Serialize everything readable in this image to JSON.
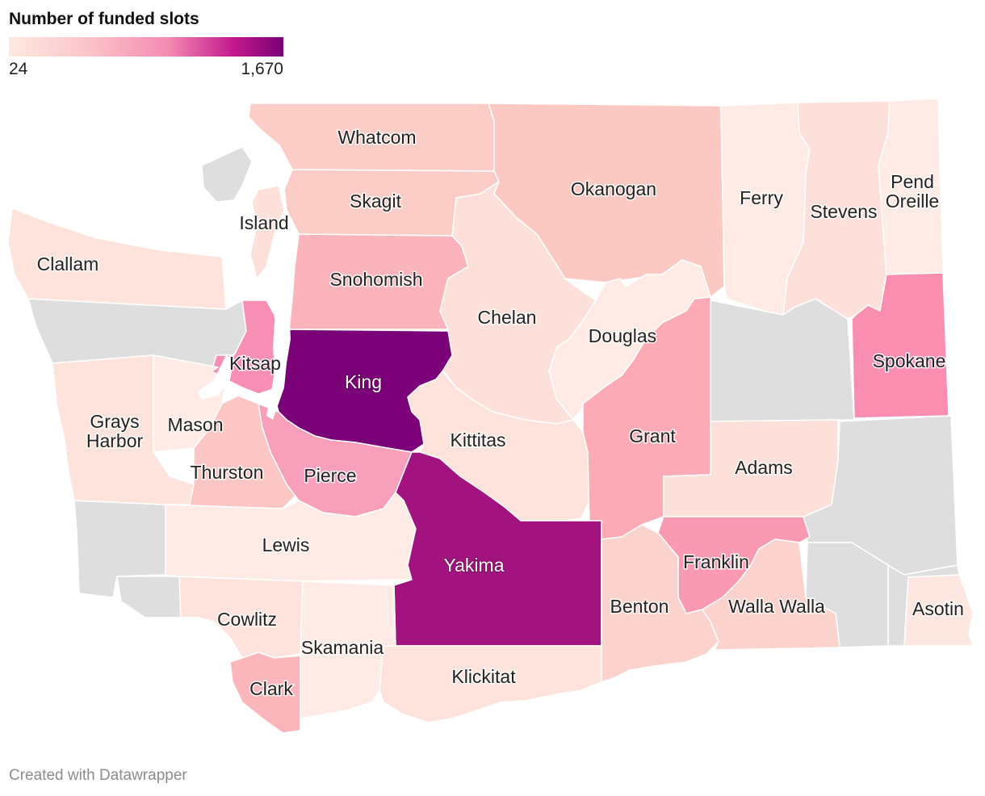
{
  "legend": {
    "title": "Number of funded slots",
    "min_label": "24",
    "max_label": "1,670",
    "min": 24,
    "max": 1670
  },
  "credit": "Created with Datawrapper",
  "colors": {
    "no_data": "#dedede",
    "water": "#ffffff"
  },
  "counties": [
    {
      "id": "whatcom",
      "name": "Whatcom",
      "fill": "#fccdc6"
    },
    {
      "id": "okanogan",
      "name": "Okanogan",
      "fill": "#fcc8c2"
    },
    {
      "id": "ferry",
      "name": "Ferry",
      "fill": "#feebe5"
    },
    {
      "id": "stevens",
      "name": "Stevens",
      "fill": "#fde0d9"
    },
    {
      "id": "pend-oreille",
      "name": "Pend\nOreille",
      "fill": "#feebe5"
    },
    {
      "id": "skagit",
      "name": "Skagit",
      "fill": "#fccdc6"
    },
    {
      "id": "island",
      "name": "Island",
      "fill": "#fde0d9"
    },
    {
      "id": "clallam",
      "name": "Clallam",
      "fill": "#fde3dc"
    },
    {
      "id": "snohomish",
      "name": "Snohomish",
      "fill": "#fbb4bc"
    },
    {
      "id": "chelan",
      "name": "Chelan",
      "fill": "#fde0d9"
    },
    {
      "id": "douglas",
      "name": "Douglas",
      "fill": "#feebe5"
    },
    {
      "id": "kitsap",
      "name": "Kitsap",
      "fill": "#f78fb4"
    },
    {
      "id": "king",
      "name": "King",
      "fill": "#7a0177"
    },
    {
      "id": "spokane",
      "name": "Spokane",
      "fill": "#f98eb0"
    },
    {
      "id": "grays-harbor",
      "name": "Grays\nHarbor",
      "fill": "#fde3dc"
    },
    {
      "id": "mason",
      "name": "Mason",
      "fill": "#feebe5"
    },
    {
      "id": "kittitas",
      "name": "Kittitas",
      "fill": "#fde3dc"
    },
    {
      "id": "grant",
      "name": "Grant",
      "fill": "#fbaab6"
    },
    {
      "id": "thurston",
      "name": "Thurston",
      "fill": "#fbc6c3"
    },
    {
      "id": "pierce",
      "name": "Pierce",
      "fill": "#f89fbb"
    },
    {
      "id": "adams",
      "name": "Adams",
      "fill": "#fde0d9"
    },
    {
      "id": "lewis",
      "name": "Lewis",
      "fill": "#feebe5"
    },
    {
      "id": "yakima",
      "name": "Yakima",
      "fill": "#a3137f"
    },
    {
      "id": "franklin",
      "name": "Franklin",
      "fill": "#f99ab2"
    },
    {
      "id": "benton",
      "name": "Benton",
      "fill": "#fcd2cc"
    },
    {
      "id": "walla-walla",
      "name": "Walla Walla",
      "fill": "#fcd2cc"
    },
    {
      "id": "asotin",
      "name": "Asotin",
      "fill": "#fde7e0"
    },
    {
      "id": "cowlitz",
      "name": "Cowlitz",
      "fill": "#fde3dc"
    },
    {
      "id": "skamania",
      "name": "Skamania",
      "fill": "#feebe5"
    },
    {
      "id": "clark",
      "name": "Clark",
      "fill": "#fbb6bc"
    },
    {
      "id": "klickitat",
      "name": "Klickitat",
      "fill": "#fde3dc"
    }
  ]
}
